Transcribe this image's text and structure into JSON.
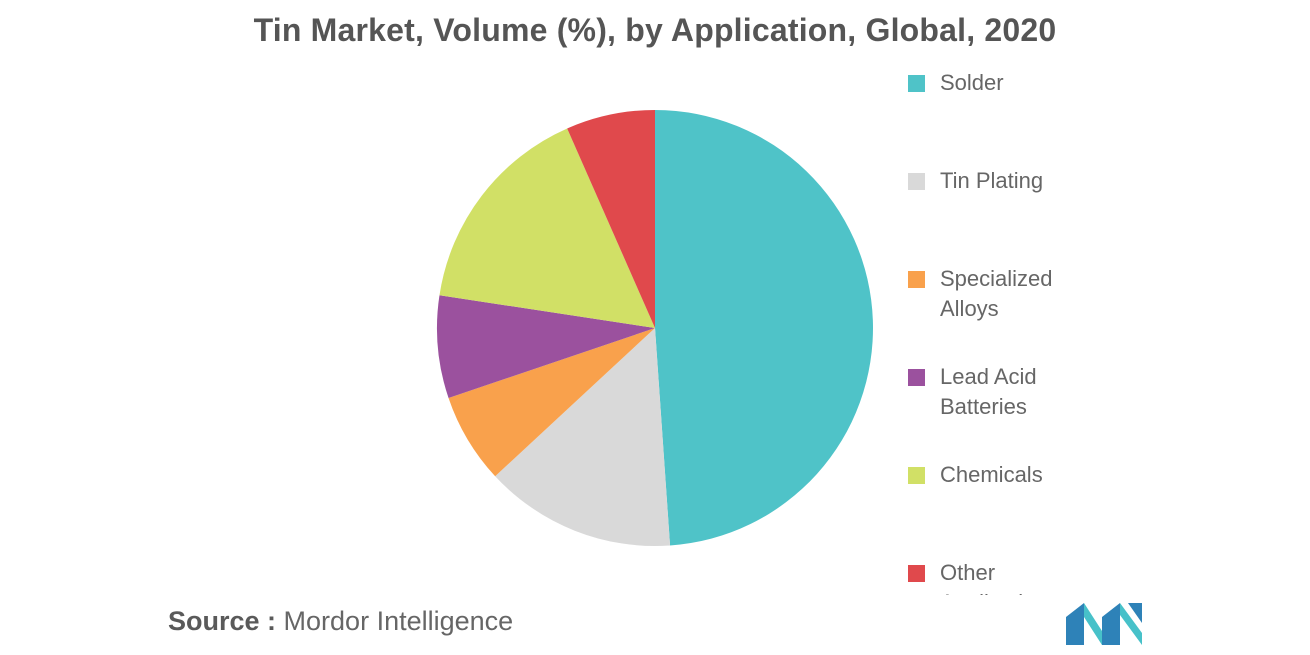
{
  "chart_data": {
    "type": "pie",
    "title": "Tin Market, Volume (%), by Application, Global, 2020",
    "categories": [
      "Solder",
      "Tin Plating",
      "Specialized Alloys",
      "Lead Acid Batteries",
      "Chemicals",
      "Other Applications"
    ],
    "values": [
      48.9,
      14.2,
      6.7,
      7.6,
      16.0,
      6.6
    ],
    "colors": [
      "#4fc3c8",
      "#d9d9d9",
      "#f9a14c",
      "#9b519e",
      "#d1e066",
      "#e0494c"
    ],
    "start_angle_deg": 0,
    "direction": "clockwise",
    "legend_position": "right"
  },
  "legend": {
    "items": [
      {
        "label": "Solder",
        "color": "#4fc3c8"
      },
      {
        "label": "Tin Plating",
        "color": "#d9d9d9"
      },
      {
        "label": "Specialized Alloys",
        "color": "#f9a14c"
      },
      {
        "label": "Lead Acid Batteries",
        "color": "#9b519e"
      },
      {
        "label": "Chemicals",
        "color": "#d1e066"
      },
      {
        "label": "Other Applications",
        "color": "#e0494c"
      }
    ]
  },
  "source": {
    "key": "Source :",
    "value": "Mordor Intelligence"
  },
  "logo": {
    "icon": "mordor-intelligence-logo-icon",
    "colors": [
      "#2e82b8",
      "#47c1c9"
    ]
  }
}
